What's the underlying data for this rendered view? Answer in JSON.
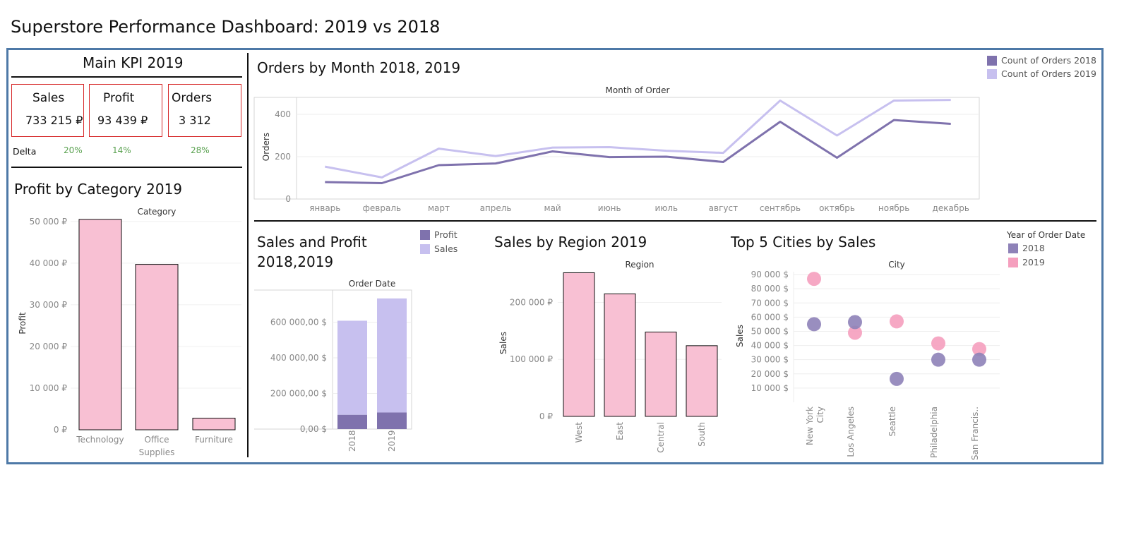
{
  "dashboard_title": "Superstore Performance Dashboard: 2019 vs 2018",
  "kpi": {
    "title": "Main KPI 2019",
    "cards": [
      {
        "label": "Sales",
        "value": "733 215 ₽"
      },
      {
        "label": "Profit",
        "value": "93 439 ₽"
      },
      {
        "label": "Orders",
        "value": "3 312"
      }
    ],
    "delta_label": "Delta",
    "deltas": [
      "20%",
      "14%",
      "28%"
    ]
  },
  "colors": {
    "purple_dark": "#7f72ad",
    "purple_light": "#c7c0ef",
    "pink": "#f8c0d3",
    "pink_dot": "#f59fbe",
    "purple_dot": "#8e82b8",
    "delta_green": "#59a14f",
    "frame": "#4e79a7"
  },
  "chart_data": [
    {
      "id": "orders_by_month",
      "type": "line",
      "title": "Orders by Month 2018, 2019",
      "header": "Month of Order",
      "ylabel": "Orders",
      "ylim": [
        0,
        480
      ],
      "yticks": [
        0,
        200,
        400
      ],
      "categories": [
        "январь",
        "февраль",
        "март",
        "апрель",
        "май",
        "июнь",
        "июль",
        "август",
        "сентябрь",
        "октябрь",
        "ноябрь",
        "декабрь"
      ],
      "series": [
        {
          "name": "Count of Orders 2018",
          "values": [
            80,
            75,
            160,
            168,
            225,
            198,
            200,
            175,
            365,
            195,
            373,
            355
          ]
        },
        {
          "name": "Count of Orders 2019",
          "values": [
            153,
            102,
            238,
            203,
            243,
            245,
            228,
            218,
            465,
            300,
            465,
            468
          ]
        }
      ],
      "legend": "top-right",
      "grid": true
    },
    {
      "id": "profit_by_category",
      "type": "bar",
      "title": "Profit by Category 2019",
      "header": "Category",
      "ylabel": "Profit",
      "ylim": [
        0,
        52000
      ],
      "yticks": [
        0,
        10000,
        20000,
        30000,
        40000,
        50000
      ],
      "ytick_labels": [
        "0 ₽",
        "10 000 ₽",
        "20 000 ₽",
        "30 000 ₽",
        "40 000 ₽",
        "50 000 ₽"
      ],
      "categories": [
        [
          "Technology"
        ],
        [
          "Office",
          "Supplies"
        ],
        [
          "Furniture"
        ]
      ],
      "values": [
        50500,
        39700,
        2800
      ]
    },
    {
      "id": "sales_and_profit",
      "type": "bar",
      "stacked": true,
      "title_lines": [
        "Sales and Profit",
        "2018,2019"
      ],
      "header": "Order Date",
      "ylim": [
        0,
        780000
      ],
      "yticks": [
        0,
        200000,
        400000,
        600000
      ],
      "ytick_labels": [
        "0,00 $",
        "200 000,00 $",
        "400 000,00 $",
        "600 000,00 $"
      ],
      "categories": [
        "2018",
        "2019"
      ],
      "series": [
        {
          "name": "Profit",
          "values": [
            80000,
            93000
          ]
        },
        {
          "name": "Sales",
          "values": [
            608000,
            733000
          ]
        }
      ],
      "legend": "top-right"
    },
    {
      "id": "sales_by_region",
      "type": "bar",
      "title": "Sales by Region 2019",
      "header": "Region",
      "ylabel": "Sales",
      "ylim": [
        0,
        260000
      ],
      "yticks": [
        0,
        100000,
        200000
      ],
      "ytick_labels": [
        "0 ₽",
        "100 000 ₽",
        "200 000 ₽"
      ],
      "categories": [
        "West",
        "East",
        "Central",
        "South"
      ],
      "values": [
        252000,
        215000,
        148000,
        124000
      ]
    },
    {
      "id": "top5_cities",
      "type": "scatter",
      "title": "Top 5 Cities by Sales",
      "header": "City",
      "ylabel": "Sales",
      "ylim": [
        0,
        95000
      ],
      "yticks": [
        10000,
        20000,
        30000,
        40000,
        50000,
        60000,
        70000,
        80000,
        90000
      ],
      "ytick_labels": [
        "10 000 $",
        "20 000 $",
        "30 000 $",
        "40 000 $",
        "50 000 $",
        "60 000 $",
        "70 000 $",
        "80 000 $",
        "90 000 $"
      ],
      "categories": [
        [
          "New York",
          "City"
        ],
        [
          "Los Angeles"
        ],
        [
          "Seattle"
        ],
        [
          "Philadelphia"
        ],
        [
          "San Francis.."
        ]
      ],
      "legend_title": "Year of Order Date",
      "series": [
        {
          "name": "2018",
          "values": [
            55000,
            56500,
            16500,
            30000,
            30000
          ]
        },
        {
          "name": "2019",
          "values": [
            87000,
            49000,
            57000,
            41500,
            37500
          ]
        }
      ]
    }
  ]
}
